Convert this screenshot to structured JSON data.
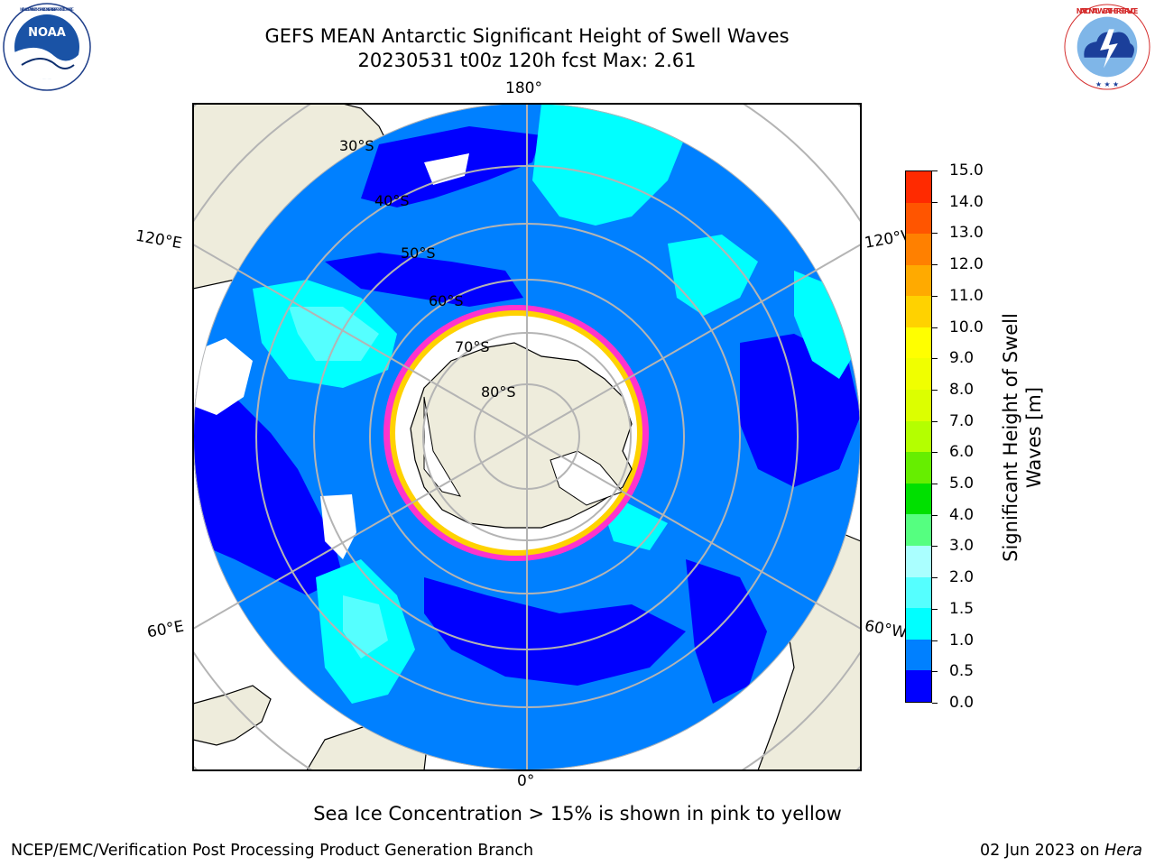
{
  "title": {
    "line1": "GEFS MEAN Antarctic Significant Height of Swell Waves",
    "line2": "20230531 t00z 120h fcst   Max: 2.61"
  },
  "logos": {
    "left": "NOAA",
    "left_ring_text": "NATIONAL OCEANIC AND ATMOSPHERIC ADMINISTRATION · U.S. DEPARTMENT OF COMMERCE",
    "right_ring_text": "NATIONAL WEATHER SERVICE"
  },
  "map": {
    "projection": "south polar stereographic",
    "lon_labels": {
      "top": "180°",
      "bottom": "0°",
      "upper_left": "120°E",
      "lower_left": "60°E",
      "upper_right": "120°W",
      "lower_right": "60°W"
    },
    "lat_labels": [
      "30°S",
      "40°S",
      "50°S",
      "60°S",
      "70°S",
      "80°S"
    ],
    "colors": {
      "land": "#eeecdc",
      "ice_shelf": "#ffffff",
      "sea_ice_edge": "#ff33cc",
      "grid": "#b4b4b4"
    }
  },
  "colorbar": {
    "label": "Significant Height of Swell Waves [m]",
    "tick_labels": [
      "0.0",
      "0.5",
      "1.0",
      "1.5",
      "2.0",
      "3.0",
      "4.0",
      "5.0",
      "6.0",
      "7.0",
      "8.0",
      "9.0",
      "10.0",
      "11.0",
      "12.0",
      "13.0",
      "14.0",
      "15.0"
    ],
    "colors": [
      "#0000ff",
      "#0080ff",
      "#00ffff",
      "#55ffff",
      "#aaffff",
      "#55ff80",
      "#00e000",
      "#66ee00",
      "#b4ff00",
      "#dcff00",
      "#f0ff00",
      "#ffff00",
      "#ffd200",
      "#ffaa00",
      "#ff8000",
      "#ff5500",
      "#ff2a00"
    ]
  },
  "caption": "Sea Ice Concentration > 15% is shown in pink to yellow",
  "footer": {
    "left": "NCEP/EMC/Verification Post Processing Product Generation Branch",
    "right_prefix": "02 Jun 2023 on ",
    "right_host": "Hera"
  }
}
